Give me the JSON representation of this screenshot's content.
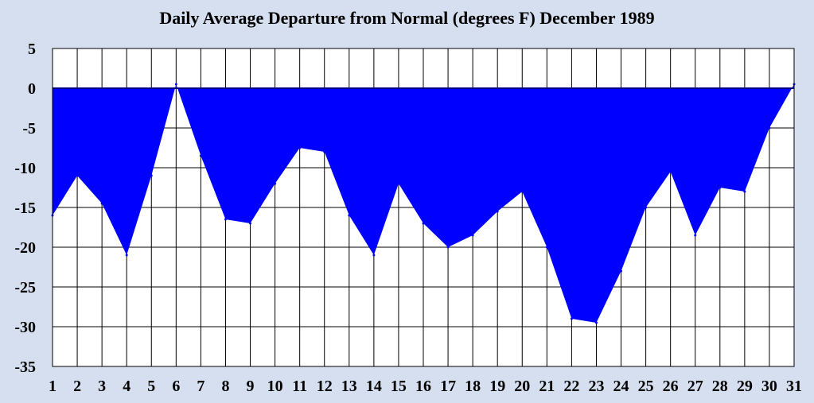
{
  "chart_data": {
    "type": "area",
    "title": "Daily Average Departure from Normal (degrees F) December 1989",
    "xlabel": "",
    "ylabel": "",
    "x": [
      1,
      2,
      3,
      4,
      5,
      6,
      7,
      8,
      9,
      10,
      11,
      12,
      13,
      14,
      15,
      16,
      17,
      18,
      19,
      20,
      21,
      22,
      23,
      24,
      25,
      26,
      27,
      28,
      29,
      30,
      31
    ],
    "series": [
      {
        "values": [
          -16,
          -11,
          -14.5,
          -21,
          -11,
          0.5,
          -8.5,
          -16.5,
          -17,
          -12,
          -7.5,
          -8,
          -16,
          -21,
          -12,
          -17,
          -20,
          -18.5,
          -15.5,
          -13,
          -20,
          -29,
          -29.5,
          -23,
          -15,
          -10.5,
          -18.5,
          -12.5,
          -13,
          -5,
          0.5
        ],
        "color": "#0000ff"
      }
    ],
    "ylim": [
      -35,
      5
    ],
    "yticks": [
      "5",
      "0",
      "-5",
      "-10",
      "-15",
      "-20",
      "-25",
      "-30",
      "-35"
    ],
    "xticks": [
      "1",
      "2",
      "3",
      "4",
      "5",
      "6",
      "7",
      "8",
      "9",
      "10",
      "11",
      "12",
      "13",
      "14",
      "15",
      "16",
      "17",
      "18",
      "19",
      "20",
      "21",
      "22",
      "23",
      "24",
      "25",
      "26",
      "27",
      "28",
      "29",
      "30",
      "31"
    ],
    "grid": true,
    "legend": "none",
    "background": "#d6dff0",
    "plot_background": "#ffffff"
  }
}
